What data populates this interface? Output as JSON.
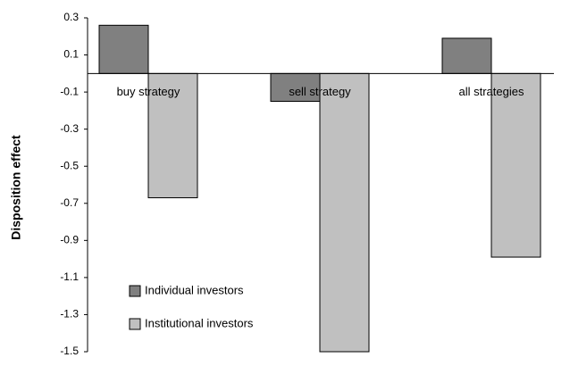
{
  "chart_data": {
    "type": "bar",
    "y_label": "Disposition effect",
    "categories": [
      "buy strategy",
      "sell strategy",
      "all strategies"
    ],
    "series": [
      {
        "name": "Individual investors",
        "color": "#808080",
        "values": [
          0.26,
          -0.15,
          0.19
        ]
      },
      {
        "name": "Institutional investors",
        "color": "#c0c0c0",
        "values": [
          -0.67,
          -1.5,
          -0.99
        ]
      }
    ],
    "ylim": [
      -1.5,
      0.3
    ],
    "yticks": [
      0.3,
      0.1,
      -0.1,
      -0.3,
      -0.5,
      -0.7,
      -0.9,
      -1.1,
      -1.3,
      -1.5
    ],
    "legend": "lower-left"
  }
}
